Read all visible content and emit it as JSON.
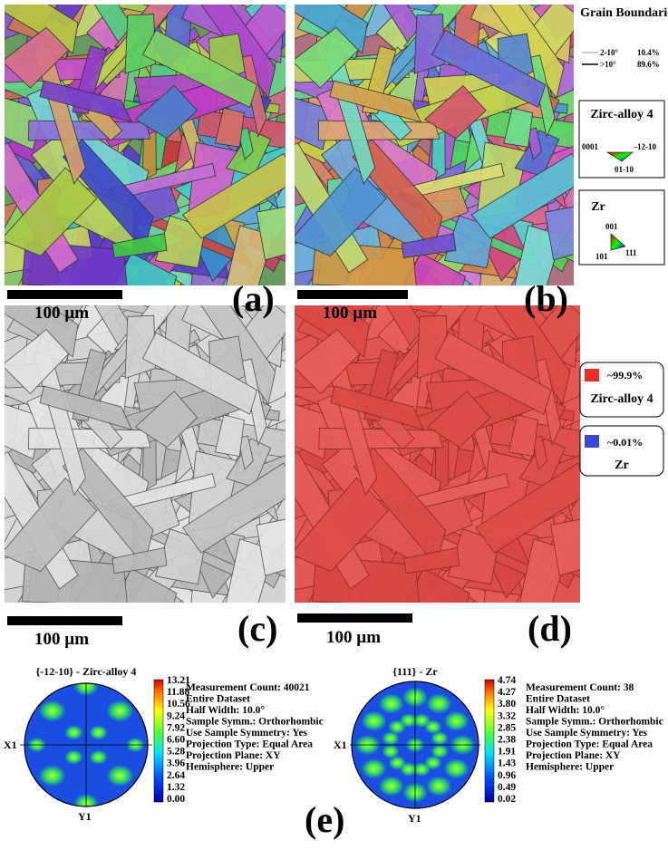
{
  "panels": [
    {
      "scale": "100 µm",
      "label": "(a)"
    },
    {
      "scale": "100 µm",
      "label": "(b)"
    },
    {
      "scale": "100 µm",
      "label": "(c)"
    },
    {
      "scale": "100 µm",
      "label": "(d)"
    }
  ],
  "grain_boundaries": {
    "title": "Grain Boundaries",
    "rows": [
      {
        "label": "2-10°",
        "value": "10.4%"
      },
      {
        "label": ">10°",
        "value": "89.6%"
      }
    ]
  },
  "ipf_keys": [
    {
      "title": "Zirc-alloy 4",
      "corners": [
        "0001",
        "-12-10",
        "01-10"
      ]
    },
    {
      "title": "Zr",
      "corners": [
        "001",
        "101",
        "111"
      ]
    }
  ],
  "phases": [
    {
      "fraction": "~99.9%",
      "name": "Zirc-alloy 4"
    },
    {
      "fraction": "~0.01%",
      "name": "Zr"
    }
  ],
  "pole_figures": [
    {
      "title": "{-12-10} - Zirc-alloy 4",
      "x_axis": "X1",
      "y_axis": "Y1",
      "colorbar": [
        "13.21",
        "11.88",
        "10.56",
        "9.24",
        "7.92",
        "6.60",
        "5.28",
        "3.96",
        "2.64",
        "1.32",
        "0.00"
      ],
      "info": [
        "Measurement Count: 40021",
        "Entire Dataset",
        "Half Width: 10.0°",
        "Sample Symm.: Orthorhombic",
        "Use Sample Symmetry: Yes",
        "Projection Type: Equal Area",
        "Projection Plane: XY",
        "Hemisphere: Upper"
      ]
    },
    {
      "title": "{111} - Zr",
      "x_axis": "X1",
      "y_axis": "Y1",
      "colorbar": [
        "4.74",
        "4.27",
        "3.80",
        "3.32",
        "2.85",
        "2.38",
        "1.91",
        "1.43",
        "0.96",
        "0.49",
        "0.02"
      ],
      "info": [
        "Measurement Count: 38",
        "Entire Dataset",
        "Half Width: 10.0°",
        "Sample Symm.: Orthorhombic",
        "Use Sample Symmetry: Yes",
        "Projection Type: Equal Area",
        "Projection Plane: XY",
        "Hemisphere: Upper"
      ]
    }
  ],
  "figure_label": "(e)"
}
